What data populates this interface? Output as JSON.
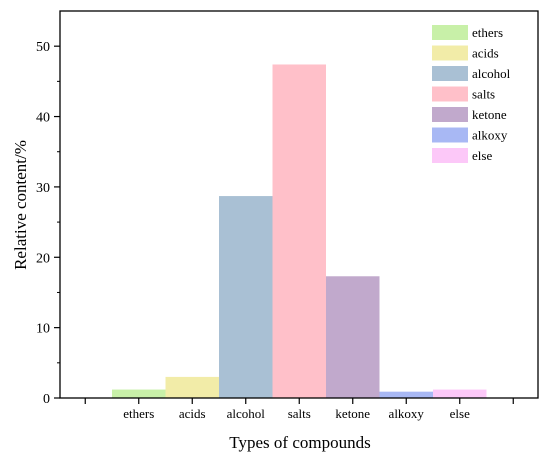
{
  "chart_data": {
    "type": "bar",
    "categories": [
      "ethers",
      "acids",
      "alcohol",
      "salts",
      "ketone",
      "alkoxy",
      "else"
    ],
    "values": [
      1.2,
      3.0,
      28.7,
      47.4,
      17.3,
      0.9,
      1.2
    ],
    "colors": [
      "#c8f0a8",
      "#f2eca8",
      "#a9c0d4",
      "#ffc0c9",
      "#c1a9cc",
      "#a8b8f4",
      "#fcc8f8"
    ],
    "xlabel": "Types of compounds",
    "ylabel": "Relative content/%",
    "ylim": [
      0,
      55
    ],
    "yticks": [
      0,
      10,
      20,
      30,
      40,
      50
    ],
    "grid": false,
    "legend": {
      "placement": "top-right",
      "entries": [
        "ethers",
        "acids",
        "alcohol",
        "salts",
        "ketone",
        "alkoxy",
        "else"
      ]
    }
  }
}
